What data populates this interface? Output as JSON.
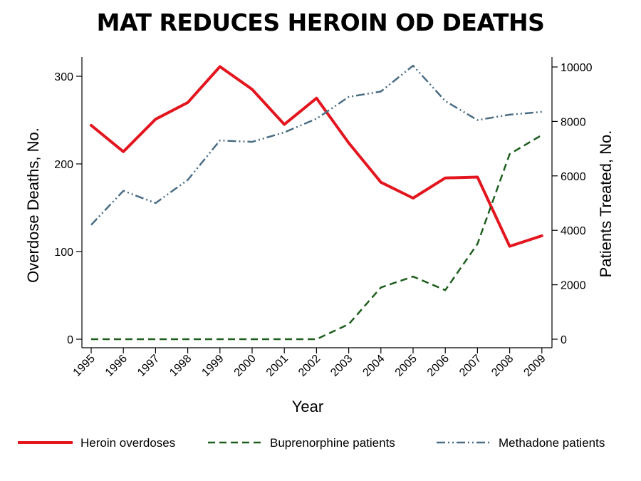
{
  "chart_data": {
    "type": "line",
    "title": "MAT REDUCES HEROIN OD DEATHS",
    "xlabel": "Year",
    "ylabel_left": "Overdose Deaths, No.",
    "ylabel_right": "Patients Treated, No.",
    "x": [
      "1995",
      "1996",
      "1997",
      "1998",
      "1999",
      "2000",
      "2001",
      "2002",
      "2003",
      "2004",
      "2005",
      "2006",
      "2007",
      "2008",
      "2009"
    ],
    "ylim_left": [
      0,
      310
    ],
    "yticks_left": [
      "0",
      "100",
      "200",
      "300"
    ],
    "ylim_right": [
      0,
      10000
    ],
    "yticks_right": [
      "0",
      "2000",
      "4000",
      "6000",
      "8000",
      "10000"
    ],
    "grid": false,
    "legend_position": "bottom",
    "series": [
      {
        "name": "Heroin overdoses",
        "axis": "left",
        "color": "#e3151e",
        "style": "solid",
        "values": [
          244,
          214,
          251,
          270,
          311,
          285,
          245,
          275,
          224,
          179,
          161,
          184,
          185,
          106,
          118
        ]
      },
      {
        "name": "Buprenorphine patients",
        "axis": "right",
        "color": "#1e5e1e",
        "style": "dashed",
        "values": [
          0,
          0,
          0,
          0,
          0,
          0,
          0,
          0,
          550,
          1900,
          2300,
          1800,
          3500,
          6800,
          7500
        ]
      },
      {
        "name": "Methadone patients",
        "axis": "right",
        "color": "#4a6d84",
        "style": "dash-dot",
        "values": [
          4200,
          5450,
          5000,
          5850,
          7300,
          7250,
          7600,
          8100,
          8900,
          9100,
          10050,
          8750,
          8050,
          8250,
          8350
        ]
      }
    ]
  }
}
